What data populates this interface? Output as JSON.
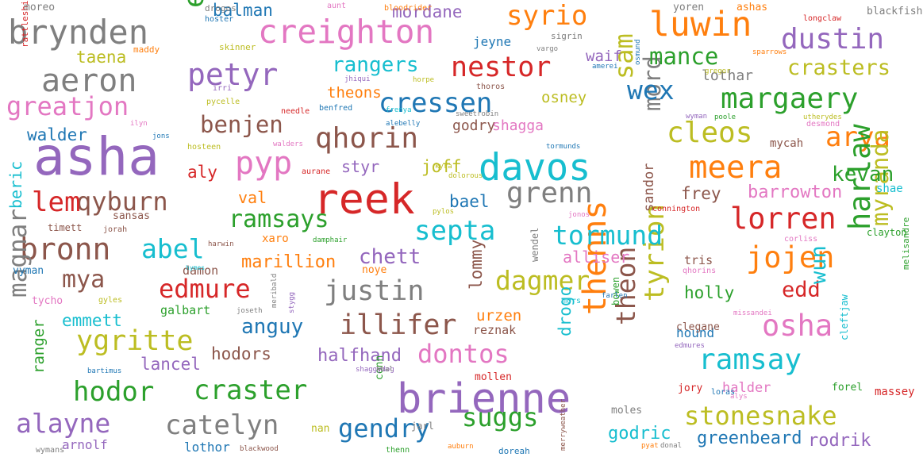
{
  "palette": {
    "blue": "#1f77b4",
    "orange": "#ff7f0e",
    "green": "#2ca02c",
    "red": "#d62728",
    "purple": "#9467bd",
    "brown": "#8c564b",
    "pink": "#e377c2",
    "gray": "#7f7f7f",
    "olive": "#bcbd22",
    "cyan": "#17becf"
  },
  "words": [
    {
      "text": "asha",
      "color": "purple"
    },
    {
      "text": "reek",
      "color": "red"
    },
    {
      "text": "brienne",
      "color": "purple"
    },
    {
      "text": "davos",
      "color": "cyan"
    },
    {
      "text": "creighton",
      "color": "pink"
    },
    {
      "text": "brynden",
      "color": "gray"
    },
    {
      "text": "aeron",
      "color": "gray"
    },
    {
      "text": "greatjon",
      "color": "pink"
    },
    {
      "text": "petyr",
      "color": "purple"
    },
    {
      "text": "pyp",
      "color": "pink"
    },
    {
      "text": "qhorin",
      "color": "brown"
    },
    {
      "text": "cressen",
      "color": "blue"
    },
    {
      "text": "nestor",
      "color": "red"
    },
    {
      "text": "syrio",
      "color": "orange"
    },
    {
      "text": "luwin",
      "color": "orange"
    },
    {
      "text": "dustin",
      "color": "purple"
    },
    {
      "text": "margaery",
      "color": "green"
    },
    {
      "text": "meera",
      "color": "orange"
    },
    {
      "text": "arya",
      "color": "orange"
    },
    {
      "text": "cleos",
      "color": "olive"
    },
    {
      "text": "lorren",
      "color": "red"
    },
    {
      "text": "jojen",
      "color": "orange"
    },
    {
      "text": "harlaw",
      "color": "green"
    },
    {
      "text": "myranda",
      "color": "olive"
    },
    {
      "text": "osha",
      "color": "pink"
    },
    {
      "text": "ramsay",
      "color": "cyan"
    },
    {
      "text": "tyrion",
      "color": "olive"
    },
    {
      "text": "theon",
      "color": "brown"
    },
    {
      "text": "thenns",
      "color": "orange"
    },
    {
      "text": "stonesnake",
      "color": "olive"
    },
    {
      "text": "septa",
      "color": "cyan"
    },
    {
      "text": "tormund",
      "color": "cyan"
    },
    {
      "text": "grenn",
      "color": "gray"
    },
    {
      "text": "justin",
      "color": "gray"
    },
    {
      "text": "illifer",
      "color": "brown"
    },
    {
      "text": "dontos",
      "color": "pink"
    },
    {
      "text": "dagmer",
      "color": "olive"
    },
    {
      "text": "edmure",
      "color": "red"
    },
    {
      "text": "craster",
      "color": "green"
    },
    {
      "text": "hodor",
      "color": "green"
    },
    {
      "text": "catelyn",
      "color": "gray"
    },
    {
      "text": "alayne",
      "color": "purple"
    },
    {
      "text": "gendry",
      "color": "blue"
    },
    {
      "text": "suggs",
      "color": "green"
    },
    {
      "text": "ygritte",
      "color": "olive"
    },
    {
      "text": "bronn",
      "color": "brown"
    },
    {
      "text": "abel",
      "color": "cyan"
    },
    {
      "text": "mya",
      "color": "brown"
    },
    {
      "text": "magnar",
      "color": "gray"
    },
    {
      "text": "qyburn",
      "color": "brown"
    },
    {
      "text": "lem",
      "color": "red"
    },
    {
      "text": "ramsays",
      "color": "green"
    },
    {
      "text": "benjen",
      "color": "brown"
    },
    {
      "text": "esgred",
      "color": "green"
    },
    {
      "text": "sam",
      "color": "olive"
    },
    {
      "text": "mord",
      "color": "gray"
    },
    {
      "text": "wex",
      "color": "blue"
    },
    {
      "text": "mance",
      "color": "green"
    },
    {
      "text": "rangers",
      "color": "cyan"
    },
    {
      "text": "crasters",
      "color": "olive"
    },
    {
      "text": "kevan",
      "color": "green"
    },
    {
      "text": "edd",
      "color": "red"
    },
    {
      "text": "wun",
      "color": "cyan"
    },
    {
      "text": "chett",
      "color": "purple"
    },
    {
      "text": "anguy",
      "color": "blue"
    },
    {
      "text": "halfhand",
      "color": "purple"
    },
    {
      "text": "lancel",
      "color": "purple"
    },
    {
      "text": "hodors",
      "color": "brown"
    },
    {
      "text": "emmett",
      "color": "cyan"
    },
    {
      "text": "marillion",
      "color": "orange"
    },
    {
      "text": "godric",
      "color": "cyan"
    },
    {
      "text": "greenbeard",
      "color": "blue"
    },
    {
      "text": "rodrik",
      "color": "purple"
    },
    {
      "text": "barrowton",
      "color": "pink"
    },
    {
      "text": "holly",
      "color": "green"
    },
    {
      "text": "balman",
      "color": "blue"
    },
    {
      "text": "mordane",
      "color": "purple"
    },
    {
      "text": "walder",
      "color": "blue"
    },
    {
      "text": "taena",
      "color": "olive"
    },
    {
      "text": "beric",
      "color": "cyan"
    },
    {
      "text": "val",
      "color": "orange"
    },
    {
      "text": "aly",
      "color": "red"
    },
    {
      "text": "bael",
      "color": "blue"
    },
    {
      "text": "joff",
      "color": "olive"
    },
    {
      "text": "styr",
      "color": "purple"
    },
    {
      "text": "frey",
      "color": "brown"
    },
    {
      "text": "alliser",
      "color": "pink"
    },
    {
      "text": "urzen",
      "color": "orange"
    },
    {
      "text": "drogo",
      "color": "cyan"
    },
    {
      "text": "lommy",
      "color": "brown"
    },
    {
      "text": "ranger",
      "color": "green"
    },
    {
      "text": "sandor",
      "color": "brown"
    },
    {
      "text": "theons",
      "color": "orange"
    },
    {
      "text": "godry",
      "color": "brown"
    },
    {
      "text": "shagga",
      "color": "pink"
    },
    {
      "text": "osney",
      "color": "olive"
    },
    {
      "text": "waif",
      "color": "purple"
    },
    {
      "text": "lothar",
      "color": "gray"
    },
    {
      "text": "jeyne",
      "color": "blue"
    },
    {
      "text": "hound",
      "color": "blue"
    },
    {
      "text": "halder",
      "color": "pink"
    },
    {
      "text": "arnolf",
      "color": "purple"
    },
    {
      "text": "lothor",
      "color": "blue"
    },
    {
      "text": "damon",
      "color": "brown"
    },
    {
      "text": "galbart",
      "color": "green"
    },
    {
      "text": "tris",
      "color": "brown"
    },
    {
      "text": "nan",
      "color": "olive"
    },
    {
      "text": "conn",
      "color": "green"
    },
    {
      "text": "jarl",
      "color": "gray"
    },
    {
      "text": "reznak",
      "color": "brown"
    },
    {
      "text": "mollen",
      "color": "red"
    },
    {
      "text": "clegane",
      "color": "brown"
    },
    {
      "text": "jory",
      "color": "red"
    },
    {
      "text": "forel",
      "color": "green"
    },
    {
      "text": "massey",
      "color": "red"
    },
    {
      "text": "shae",
      "color": "cyan"
    },
    {
      "text": "clayton",
      "color": "green"
    },
    {
      "text": "mycah",
      "color": "brown"
    },
    {
      "text": "xaro",
      "color": "orange"
    },
    {
      "text": "wendel",
      "color": "gray"
    },
    {
      "text": "bowen",
      "color": "green"
    },
    {
      "text": "cleftjaw",
      "color": "cyan"
    },
    {
      "text": "melisandre",
      "color": "green"
    },
    {
      "text": "moles",
      "color": "gray"
    },
    {
      "text": "noye",
      "color": "orange"
    },
    {
      "text": "sansas",
      "color": "brown"
    },
    {
      "text": "timett",
      "color": "brown"
    },
    {
      "text": "jorah",
      "color": "brown"
    },
    {
      "text": "vyman",
      "color": "blue"
    },
    {
      "text": "tycho",
      "color": "pink"
    },
    {
      "text": "gyles",
      "color": "olive"
    },
    {
      "text": "bartimus",
      "color": "blue"
    },
    {
      "text": "wymans",
      "color": "gray"
    },
    {
      "text": "blackwood",
      "color": "brown"
    },
    {
      "text": "thenn",
      "color": "green"
    },
    {
      "text": "auburn",
      "color": "orange"
    },
    {
      "text": "doreah",
      "color": "blue"
    },
    {
      "text": "merryweather",
      "color": "brown"
    },
    {
      "text": "pyat",
      "color": "orange"
    },
    {
      "text": "donal",
      "color": "gray"
    },
    {
      "text": "loras",
      "color": "blue"
    },
    {
      "text": "alys",
      "color": "pink"
    },
    {
      "text": "shaggydog",
      "color": "purple"
    },
    {
      "text": "khal",
      "color": "gray"
    },
    {
      "text": "farlen",
      "color": "blue"
    },
    {
      "text": "mors",
      "color": "cyan"
    },
    {
      "text": "missandei",
      "color": "pink"
    },
    {
      "text": "edmures",
      "color": "purple"
    },
    {
      "text": "qhorins",
      "color": "pink"
    },
    {
      "text": "corliss",
      "color": "pink"
    },
    {
      "text": "connington",
      "color": "red"
    },
    {
      "text": "joseth",
      "color": "gray"
    },
    {
      "text": "meribald",
      "color": "gray"
    },
    {
      "text": "stygg",
      "color": "purple"
    },
    {
      "text": "hymes",
      "color": "cyan"
    },
    {
      "text": "harwin",
      "color": "brown"
    },
    {
      "text": "damphair",
      "color": "green"
    },
    {
      "text": "jonos",
      "color": "pink"
    },
    {
      "text": "pylos",
      "color": "olive"
    },
    {
      "text": "dolorous",
      "color": "olive"
    },
    {
      "text": "kyra",
      "color": "olive"
    },
    {
      "text": "aurane",
      "color": "red"
    },
    {
      "text": "hosteen",
      "color": "olive"
    },
    {
      "text": "jons",
      "color": "blue"
    },
    {
      "text": "ilyn",
      "color": "pink"
    },
    {
      "text": "walders",
      "color": "pink"
    },
    {
      "text": "tormunds",
      "color": "blue"
    },
    {
      "text": "sweetrobin",
      "color": "gray"
    },
    {
      "text": "alebelly",
      "color": "blue"
    },
    {
      "text": "frenya",
      "color": "cyan"
    },
    {
      "text": "needle",
      "color": "red"
    },
    {
      "text": "benfred",
      "color": "blue"
    },
    {
      "text": "pycelle",
      "color": "olive"
    },
    {
      "text": "irri",
      "color": "purple"
    },
    {
      "text": "thoros",
      "color": "brown"
    },
    {
      "text": "jhiqui",
      "color": "purple"
    },
    {
      "text": "horpe",
      "color": "olive"
    },
    {
      "text": "wyman",
      "color": "purple"
    },
    {
      "text": "poole",
      "color": "green"
    },
    {
      "text": "utherydes",
      "color": "olive"
    },
    {
      "text": "desmond",
      "color": "pink"
    },
    {
      "text": "gregor",
      "color": "olive"
    },
    {
      "text": "osmund",
      "color": "blue"
    },
    {
      "text": "amerei",
      "color": "blue"
    },
    {
      "text": "sparrows",
      "color": "orange"
    },
    {
      "text": "vargo",
      "color": "gray"
    },
    {
      "text": "sigrin",
      "color": "gray"
    },
    {
      "text": "skinner",
      "color": "olive"
    },
    {
      "text": "maddy",
      "color": "orange"
    },
    {
      "text": "hoster",
      "color": "blue"
    },
    {
      "text": "rattleshirt",
      "color": "red"
    },
    {
      "text": "moreo",
      "color": "gray"
    },
    {
      "text": "drogos",
      "color": "gray"
    },
    {
      "text": "aunt",
      "color": "pink"
    },
    {
      "text": "bloodrider",
      "color": "orange"
    },
    {
      "text": "yoren",
      "color": "gray"
    },
    {
      "text": "ashas",
      "color": "orange"
    },
    {
      "text": "longclaw",
      "color": "red"
    },
    {
      "text": "blackfish",
      "color": "gray"
    },
    {
      "text": "ebben",
      "color": "green"
    }
  ]
}
